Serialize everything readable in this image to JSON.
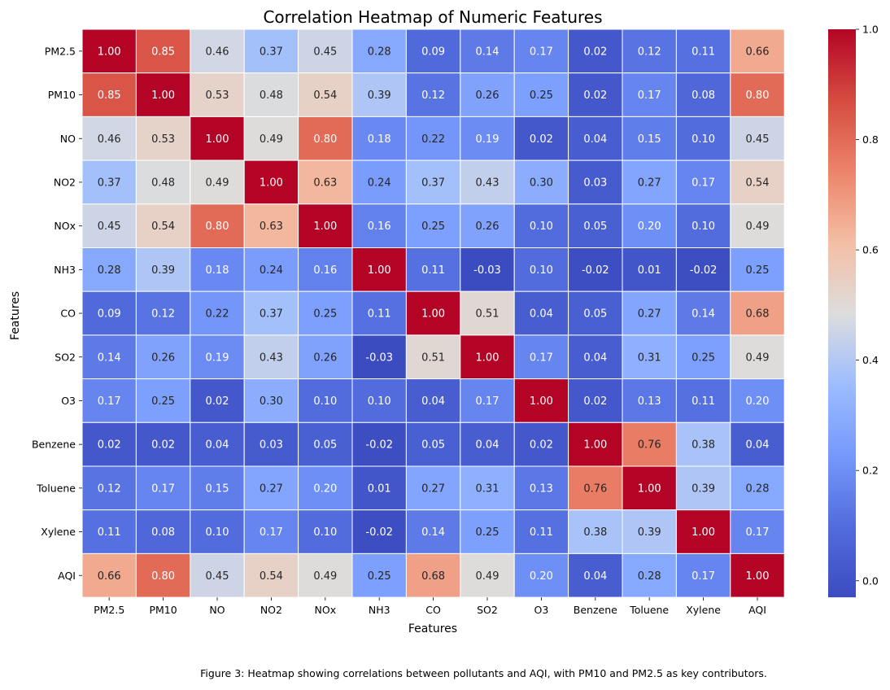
{
  "caption": "Figure 3: Heatmap showing correlations between pollutants and AQI, with PM10 and PM2.5 as key contributors.",
  "chart_data": {
    "type": "heatmap",
    "title": "Correlation Heatmap of Numeric Features",
    "xlabel": "Features",
    "ylabel": "Features",
    "colormap": "coolwarm",
    "vmin": -0.03,
    "vmax": 1.0,
    "colorbar_ticks": [
      "0.0",
      "0.2",
      "0.4",
      "0.6",
      "0.8",
      "1.0"
    ],
    "colorbar_tick_values": [
      0.0,
      0.2,
      0.4,
      0.6,
      0.8,
      1.0
    ],
    "labels": [
      "PM2.5",
      "PM10",
      "NO",
      "NO2",
      "NOx",
      "NH3",
      "CO",
      "SO2",
      "O3",
      "Benzene",
      "Toluene",
      "Xylene",
      "AQI"
    ],
    "matrix": [
      [
        1.0,
        0.85,
        0.46,
        0.37,
        0.45,
        0.28,
        0.09,
        0.14,
        0.17,
        0.02,
        0.12,
        0.11,
        0.66
      ],
      [
        0.85,
        1.0,
        0.53,
        0.48,
        0.54,
        0.39,
        0.12,
        0.26,
        0.25,
        0.02,
        0.17,
        0.08,
        0.8
      ],
      [
        0.46,
        0.53,
        1.0,
        0.49,
        0.8,
        0.18,
        0.22,
        0.19,
        0.02,
        0.04,
        0.15,
        0.1,
        0.45
      ],
      [
        0.37,
        0.48,
        0.49,
        1.0,
        0.63,
        0.24,
        0.37,
        0.43,
        0.3,
        0.03,
        0.27,
        0.17,
        0.54
      ],
      [
        0.45,
        0.54,
        0.8,
        0.63,
        1.0,
        0.16,
        0.25,
        0.26,
        0.1,
        0.05,
        0.2,
        0.1,
        0.49
      ],
      [
        0.28,
        0.39,
        0.18,
        0.24,
        0.16,
        1.0,
        0.11,
        -0.03,
        0.1,
        -0.02,
        0.01,
        -0.02,
        0.25
      ],
      [
        0.09,
        0.12,
        0.22,
        0.37,
        0.25,
        0.11,
        1.0,
        0.51,
        0.04,
        0.05,
        0.27,
        0.14,
        0.68
      ],
      [
        0.14,
        0.26,
        0.19,
        0.43,
        0.26,
        -0.03,
        0.51,
        1.0,
        0.17,
        0.04,
        0.31,
        0.25,
        0.49
      ],
      [
        0.17,
        0.25,
        0.02,
        0.3,
        0.1,
        0.1,
        0.04,
        0.17,
        1.0,
        0.02,
        0.13,
        0.11,
        0.2
      ],
      [
        0.02,
        0.02,
        0.04,
        0.03,
        0.05,
        -0.02,
        0.05,
        0.04,
        0.02,
        1.0,
        0.76,
        0.38,
        0.04
      ],
      [
        0.12,
        0.17,
        0.15,
        0.27,
        0.2,
        0.01,
        0.27,
        0.31,
        0.13,
        0.76,
        1.0,
        0.39,
        0.28
      ],
      [
        0.11,
        0.08,
        0.1,
        0.17,
        0.1,
        -0.02,
        0.14,
        0.25,
        0.11,
        0.38,
        0.39,
        1.0,
        0.17
      ],
      [
        0.66,
        0.8,
        0.45,
        0.54,
        0.49,
        0.25,
        0.68,
        0.49,
        0.2,
        0.04,
        0.28,
        0.17,
        1.0
      ]
    ]
  }
}
